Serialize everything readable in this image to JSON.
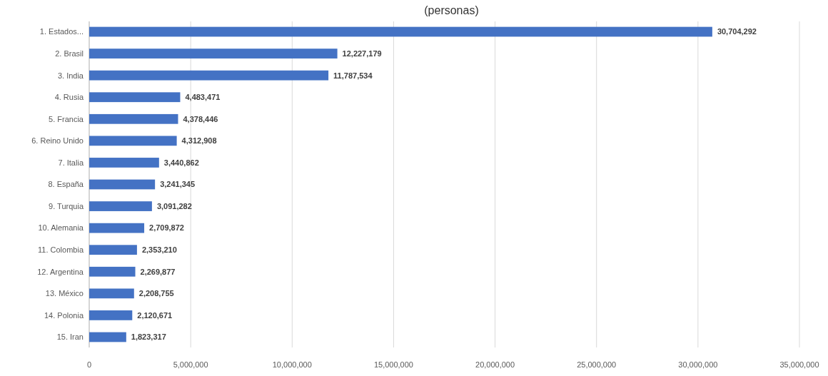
{
  "chart_data": {
    "type": "bar",
    "orientation": "horizontal",
    "title": "(personas)",
    "categories": [
      "1. Estados...",
      "2. Brasil",
      "3. India",
      "4. Rusia",
      "5. Francia",
      "6. Reino Unido",
      "7. Italia",
      "8. España",
      "9. Turquia",
      "10. Alemania",
      "11. Colombia",
      "12. Argentina",
      "13. México",
      "14. Polonia",
      "15. Iran"
    ],
    "values": [
      30704292,
      12227179,
      11787534,
      4483471,
      4378446,
      4312908,
      3440862,
      3241345,
      3091282,
      2709872,
      2353210,
      2269877,
      2208755,
      2120671,
      1823317
    ],
    "value_labels": [
      "30,704,292",
      "12,227,179",
      "11,787,534",
      "4,483,471",
      "4,378,446",
      "4,312,908",
      "3,440,862",
      "3,241,345",
      "3,091,282",
      "2,709,872",
      "2,353,210",
      "2,269,877",
      "2,208,755",
      "2,120,671",
      "1,823,317"
    ],
    "color": "#4472c4",
    "xlim": [
      0,
      35000000
    ],
    "xticks": [
      0,
      {
        "value": 5000000,
        "label": "5,000,000"
      },
      {
        "value": 10000000,
        "label": "10,000,000"
      },
      {
        "value": 15000000,
        "label": "15,000,000"
      },
      {
        "value": 20000000,
        "label": "20,000,000"
      },
      {
        "value": 25000000,
        "label": "25,000,000"
      },
      {
        "value": 30000000,
        "label": "30,000,000"
      },
      {
        "value": 35000000,
        "label": "35,000,000"
      }
    ],
    "grid": "x"
  }
}
